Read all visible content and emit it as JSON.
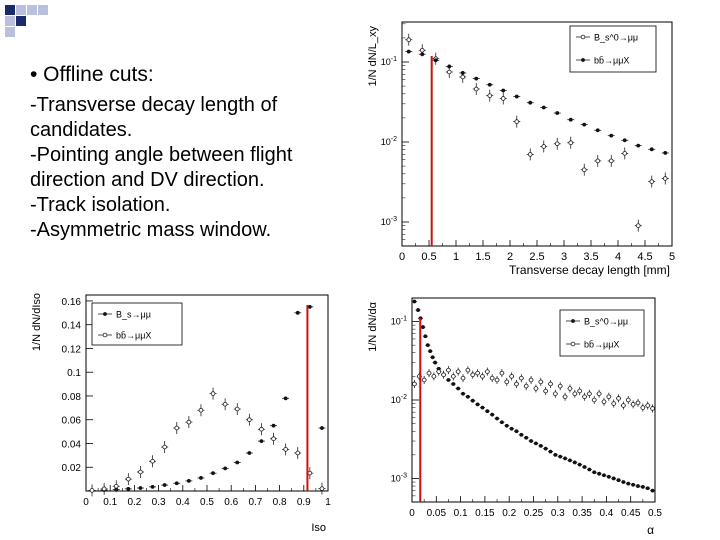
{
  "slide": {
    "header": "• Offline cuts:",
    "lines": [
      "-Transverse decay length of",
      "candidates.",
      "-Pointing angle between flight",
      "direction and DV direction.",
      "-Track isolation.",
      "-Asymmetric mass window."
    ],
    "colors": {
      "deco_dark": "#1a2a6c",
      "deco_light": "#b9bfdc",
      "cut_line": "#d01010"
    }
  },
  "chart_data": [
    {
      "type": "scatter",
      "id": "lxy",
      "title": "",
      "xlabel": "Transverse decay length [mm]",
      "ylabel": "1/N dN/L_xy",
      "yscale": "log",
      "xlim": [
        0,
        5
      ],
      "ylim_log": [
        -3.3,
        -0.5
      ],
      "x_ticks": [
        "0",
        "0.5",
        "1",
        "1.5",
        "2",
        "2.5",
        "3",
        "3.5",
        "4",
        "4.5",
        "5"
      ],
      "y_ticks": [
        {
          "label": "10^-1",
          "exp": -1
        },
        {
          "label": "10^-2",
          "exp": -2
        },
        {
          "label": "10^-3",
          "exp": -3
        }
      ],
      "cut": 0.55,
      "legend": [
        {
          "label": "B_s^0→μμ",
          "style": "open"
        },
        {
          "label": "bb̄→μμX",
          "style": "filled"
        }
      ],
      "series": [
        {
          "name": "B_s^0→μμ",
          "style": "open",
          "x": [
            0.125,
            0.375,
            0.625,
            0.875,
            1.125,
            1.375,
            1.625,
            1.875,
            2.125,
            2.375,
            2.625,
            2.875,
            3.125,
            3.375,
            3.625,
            3.875,
            4.125,
            4.375,
            4.625,
            4.875
          ],
          "y": [
            0.19,
            0.14,
            0.11,
            0.075,
            0.065,
            0.046,
            0.038,
            0.035,
            0.018,
            0.007,
            0.0088,
            0.0095,
            0.0098,
            0.0045,
            0.0058,
            0.0058,
            0.0072,
            0.0009,
            0.0032,
            0.0035
          ]
        },
        {
          "name": "bb̄→μμX",
          "style": "filled",
          "x": [
            0.125,
            0.375,
            0.625,
            0.875,
            1.125,
            1.375,
            1.625,
            1.875,
            2.125,
            2.375,
            2.625,
            2.875,
            3.125,
            3.375,
            3.625,
            3.875,
            4.125,
            4.375,
            4.625,
            4.875
          ],
          "y": [
            0.135,
            0.125,
            0.105,
            0.088,
            0.073,
            0.062,
            0.052,
            0.044,
            0.037,
            0.031,
            0.027,
            0.023,
            0.019,
            0.0165,
            0.014,
            0.012,
            0.0105,
            0.009,
            0.0081,
            0.0073
          ]
        }
      ]
    },
    {
      "type": "scatter",
      "id": "iso",
      "title": "",
      "xlabel": "Iso",
      "ylabel": "1/N dN/dIso",
      "yscale": "linear",
      "xlim": [
        0,
        1
      ],
      "ylim": [
        0,
        0.165
      ],
      "x_ticks": [
        "0",
        "0.1",
        "0.2",
        "0.3",
        "0.4",
        "0.5",
        "0.6",
        "0.7",
        "0.8",
        "0.9",
        "1"
      ],
      "y_ticks": [
        "0.02",
        "0.04",
        "0.06",
        "0.08",
        "0.1",
        "0.12",
        "0.14",
        "0.16"
      ],
      "cut": 0.915,
      "legend": [
        {
          "label": "B_s→μμ",
          "style": "filled"
        },
        {
          "label": "bb̄→μμX",
          "style": "open"
        }
      ],
      "series": [
        {
          "name": "B_s→μμ",
          "style": "filled",
          "x": [
            0.025,
            0.075,
            0.125,
            0.175,
            0.225,
            0.275,
            0.325,
            0.375,
            0.425,
            0.475,
            0.525,
            0.575,
            0.625,
            0.675,
            0.725,
            0.775,
            0.825,
            0.875,
            0.925,
            0.975
          ],
          "y": [
            0.0005,
            0.0008,
            0.0012,
            0.0018,
            0.0025,
            0.0035,
            0.005,
            0.0065,
            0.0085,
            0.011,
            0.015,
            0.019,
            0.024,
            0.032,
            0.042,
            0.055,
            0.078,
            0.15,
            0.155,
            0.053
          ]
        },
        {
          "name": "bb̄→μμX",
          "style": "open",
          "x": [
            0.025,
            0.075,
            0.125,
            0.175,
            0.225,
            0.275,
            0.325,
            0.375,
            0.425,
            0.475,
            0.525,
            0.575,
            0.625,
            0.675,
            0.725,
            0.775,
            0.825,
            0.875,
            0.925,
            0.975
          ],
          "y": [
            0.0005,
            0.0018,
            0.004,
            0.01,
            0.016,
            0.025,
            0.037,
            0.053,
            0.058,
            0.068,
            0.082,
            0.073,
            0.069,
            0.06,
            0.052,
            0.044,
            0.035,
            0.032,
            0.015,
            0.002
          ]
        }
      ]
    },
    {
      "type": "scatter",
      "id": "alpha",
      "title": "",
      "xlabel": "α",
      "ylabel": "1/N dN/dα",
      "yscale": "log",
      "xlim": [
        0,
        0.5
      ],
      "ylim_log": [
        -3.3,
        -0.7
      ],
      "x_ticks": [
        "0",
        "0.05",
        "0.1",
        "0.15",
        "0.2",
        "0.25",
        "0.3",
        "0.35",
        "0.4",
        "0.45",
        "0.5"
      ],
      "y_ticks": [
        {
          "label": "10^-1",
          "exp": -1
        },
        {
          "label": "10^-2",
          "exp": -2
        },
        {
          "label": "10^-3",
          "exp": -3
        }
      ],
      "cut": 0.017,
      "legend": [
        {
          "label": "B_s^0→μμ",
          "style": "filled"
        },
        {
          "label": "bb̄→μμX",
          "style": "open"
        }
      ],
      "series": [
        {
          "name": "B_s^0→μμ",
          "style": "filled",
          "x": [
            0.005,
            0.0125,
            0.0175,
            0.0225,
            0.0275,
            0.0325,
            0.0375,
            0.0425,
            0.0475,
            0.055,
            0.065,
            0.075,
            0.085,
            0.095,
            0.105,
            0.115,
            0.125,
            0.135,
            0.145,
            0.155,
            0.165,
            0.175,
            0.185,
            0.195,
            0.205,
            0.215,
            0.225,
            0.235,
            0.245,
            0.255,
            0.265,
            0.275,
            0.285,
            0.295,
            0.305,
            0.315,
            0.325,
            0.335,
            0.345,
            0.355,
            0.365,
            0.375,
            0.385,
            0.395,
            0.405,
            0.415,
            0.425,
            0.435,
            0.445,
            0.455,
            0.465,
            0.475,
            0.485,
            0.495
          ],
          "y": [
            0.18,
            0.14,
            0.11,
            0.085,
            0.065,
            0.05,
            0.042,
            0.035,
            0.03,
            0.025,
            0.021,
            0.018,
            0.016,
            0.014,
            0.012,
            0.011,
            0.0098,
            0.0088,
            0.008,
            0.0072,
            0.0065,
            0.0058,
            0.0052,
            0.0047,
            0.0043,
            0.004,
            0.0036,
            0.0033,
            0.003,
            0.0028,
            0.0026,
            0.0024,
            0.0022,
            0.002,
            0.0019,
            0.0018,
            0.0017,
            0.0016,
            0.0015,
            0.0014,
            0.0013,
            0.0012,
            0.00115,
            0.0011,
            0.00105,
            0.001,
            0.00095,
            0.0009,
            0.00086,
            0.00083,
            0.0008,
            0.00078,
            0.00075,
            0.0007
          ]
        },
        {
          "name": "bb̄→μμX",
          "style": "open",
          "x": [
            0.005,
            0.015,
            0.025,
            0.035,
            0.045,
            0.055,
            0.065,
            0.075,
            0.085,
            0.095,
            0.105,
            0.115,
            0.125,
            0.135,
            0.145,
            0.155,
            0.165,
            0.175,
            0.185,
            0.195,
            0.205,
            0.215,
            0.225,
            0.235,
            0.245,
            0.255,
            0.265,
            0.275,
            0.285,
            0.295,
            0.305,
            0.315,
            0.325,
            0.335,
            0.345,
            0.355,
            0.365,
            0.375,
            0.385,
            0.395,
            0.405,
            0.415,
            0.425,
            0.435,
            0.445,
            0.455,
            0.465,
            0.475,
            0.485,
            0.495
          ],
          "y": [
            0.016,
            0.02,
            0.018,
            0.022,
            0.02,
            0.023,
            0.021,
            0.024,
            0.02,
            0.023,
            0.019,
            0.024,
            0.021,
            0.022,
            0.02,
            0.023,
            0.019,
            0.018,
            0.022,
            0.017,
            0.02,
            0.016,
            0.019,
            0.015,
            0.018,
            0.014,
            0.017,
            0.013,
            0.016,
            0.012,
            0.015,
            0.011,
            0.014,
            0.012,
            0.013,
            0.011,
            0.012,
            0.01,
            0.012,
            0.0095,
            0.011,
            0.009,
            0.0105,
            0.0085,
            0.01,
            0.0088,
            0.0092,
            0.008,
            0.0085,
            0.0078
          ]
        }
      ]
    }
  ]
}
